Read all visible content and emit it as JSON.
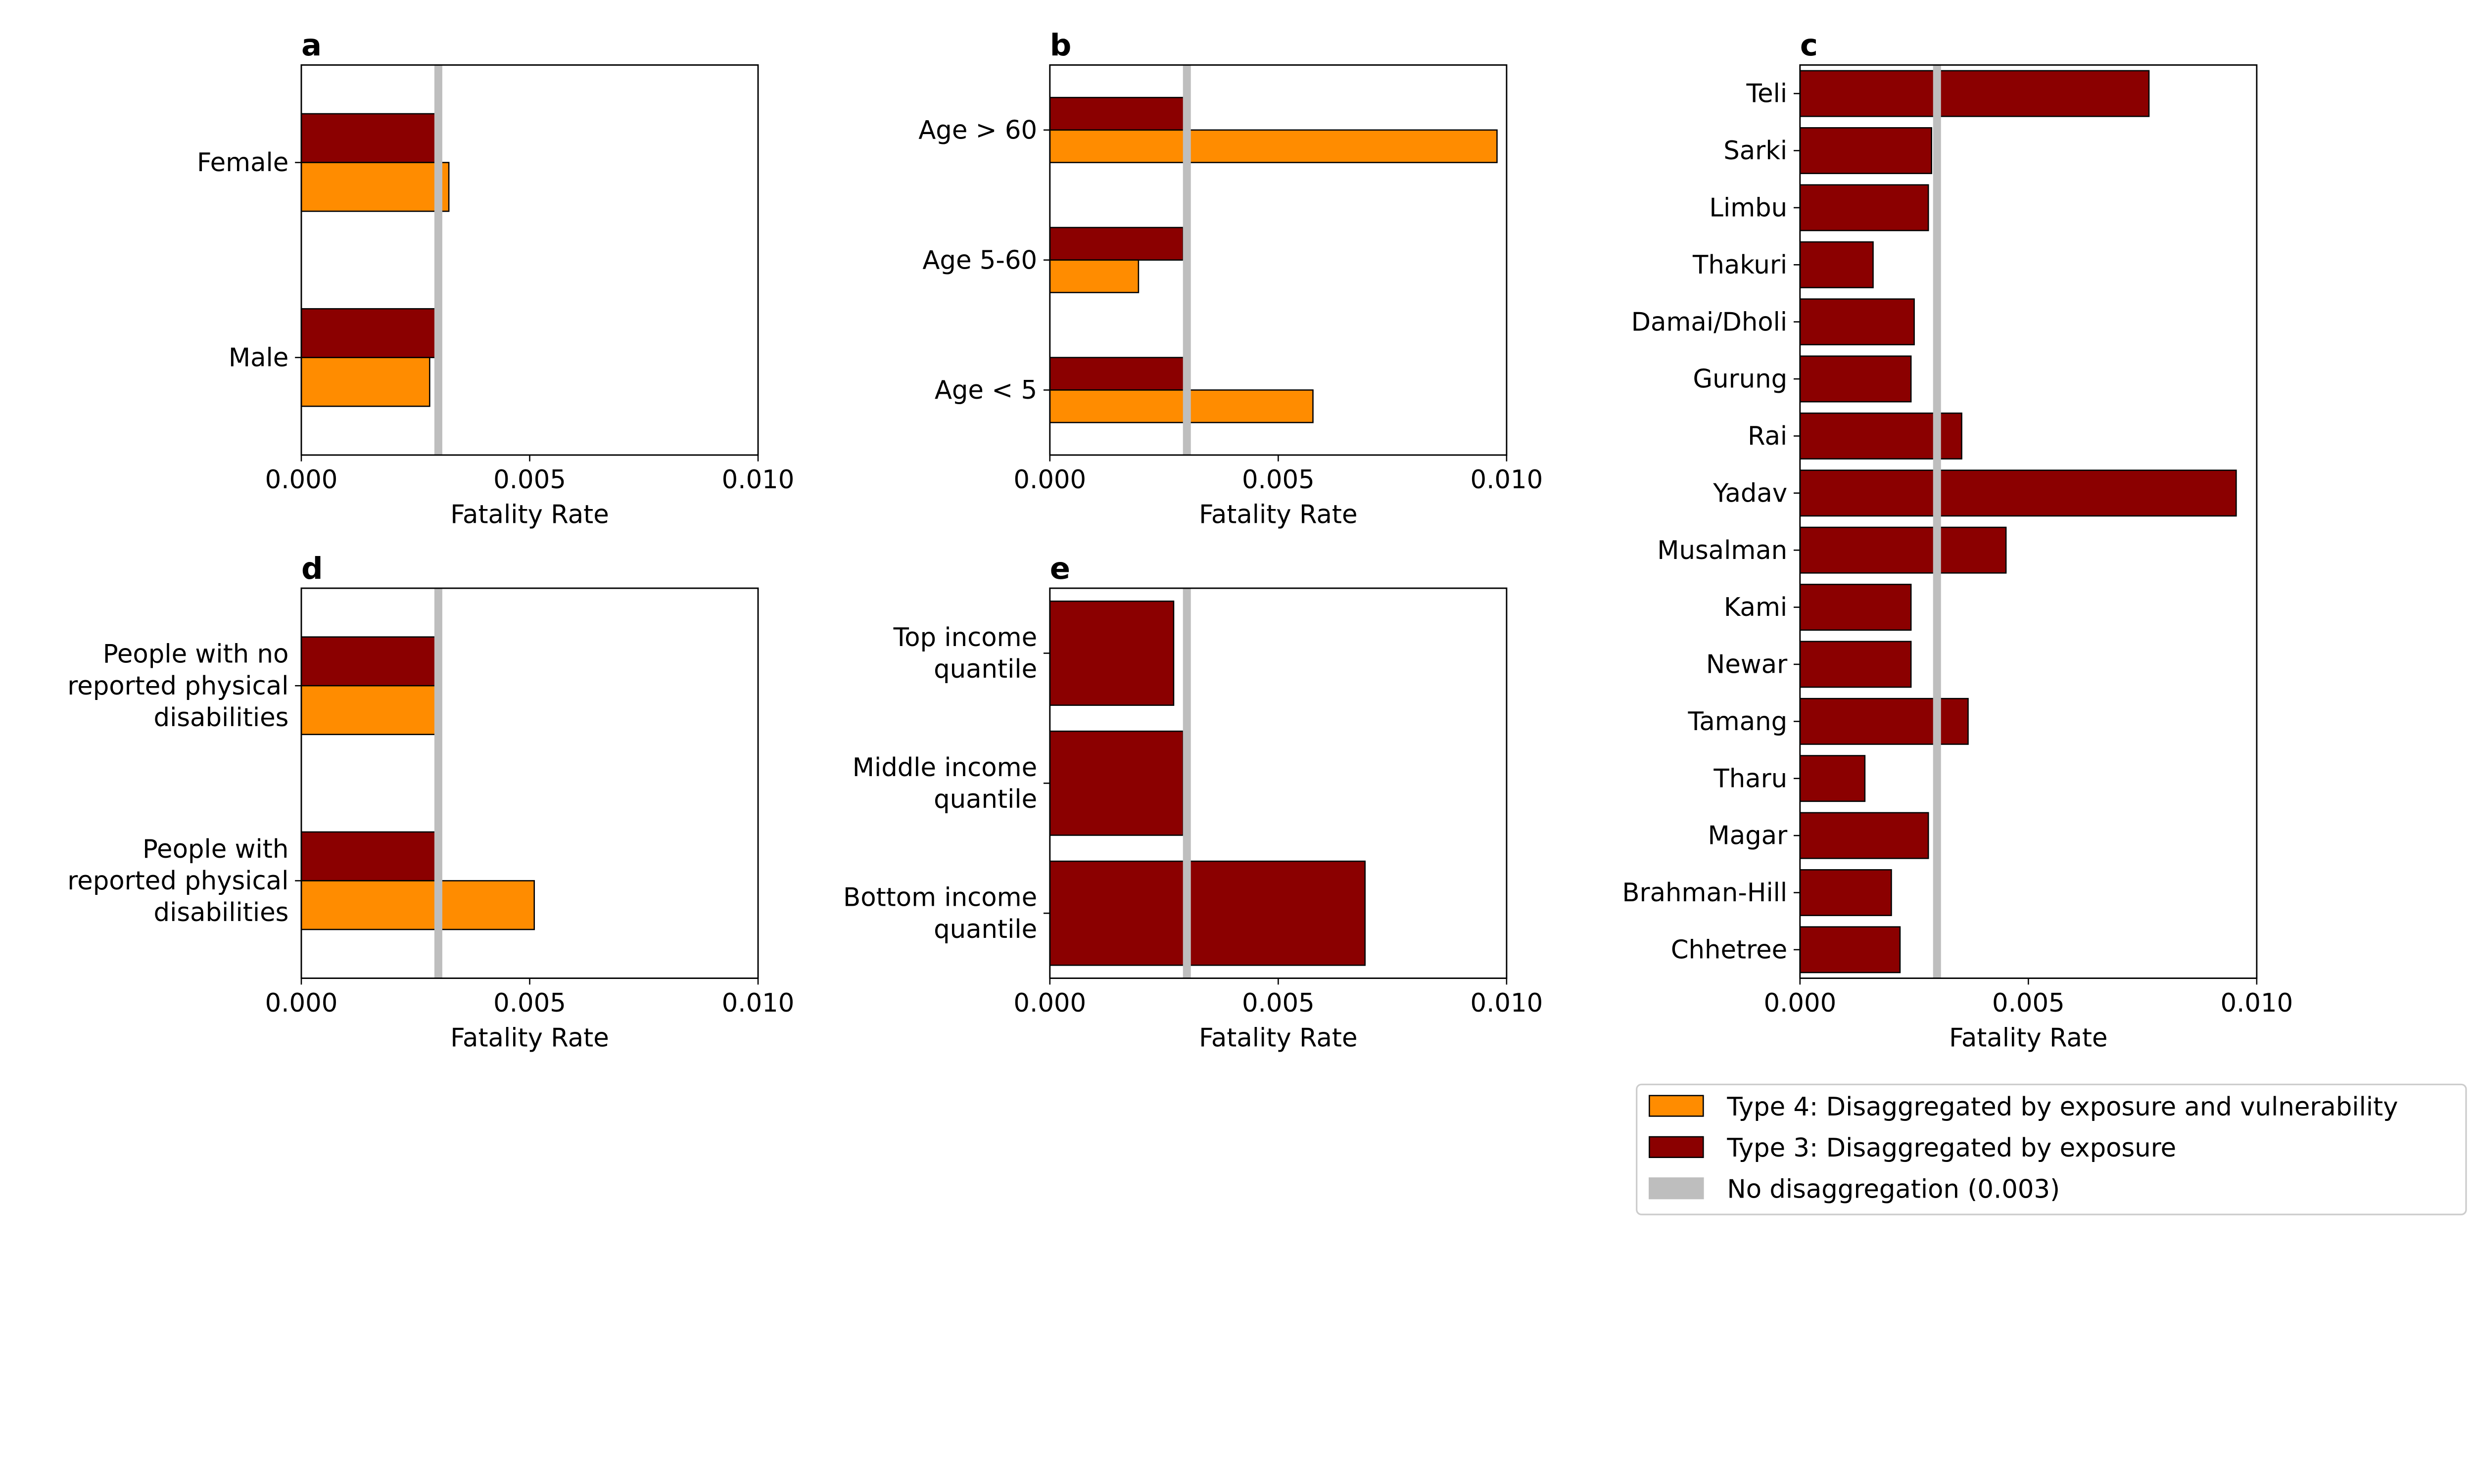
{
  "colors": {
    "type4": "#FF8C00",
    "type3": "#8B0000",
    "baseline": "#BEBEBE"
  },
  "chart_data": [
    {
      "panel": "a",
      "type": "bar",
      "orientation": "horizontal",
      "xlabel": "Fatality Rate",
      "xlim": [
        0,
        0.01
      ],
      "xticks": [
        "0.000",
        "0.005",
        "0.010"
      ],
      "baseline": 0.003,
      "categories": [
        [
          "Female"
        ],
        [
          "Male"
        ]
      ],
      "series": [
        {
          "name": "Type 3",
          "values": [
            0.003,
            0.003
          ]
        },
        {
          "name": "Type 4",
          "values": [
            0.00323,
            0.00281
          ]
        }
      ]
    },
    {
      "panel": "b",
      "type": "bar",
      "orientation": "horizontal",
      "xlabel": "Fatality Rate",
      "xlim": [
        0,
        0.01
      ],
      "xticks": [
        "0.000",
        "0.005",
        "0.010"
      ],
      "baseline": 0.003,
      "categories": [
        [
          "Age > 60"
        ],
        [
          "Age 5-60"
        ],
        [
          "Age < 5"
        ]
      ],
      "series": [
        {
          "name": "Type 3",
          "values": [
            0.00295,
            0.00292,
            0.00306
          ]
        },
        {
          "name": "Type 4",
          "values": [
            0.00979,
            0.00194,
            0.00576
          ]
        }
      ]
    },
    {
      "panel": "c",
      "type": "bar",
      "orientation": "horizontal",
      "xlabel": "Fatality Rate",
      "xlim": [
        0,
        0.01
      ],
      "xticks": [
        "0.000",
        "0.005",
        "0.010"
      ],
      "baseline": 0.003,
      "categories": [
        [
          "Teli"
        ],
        [
          "Sarki"
        ],
        [
          "Limbu"
        ],
        [
          "Thakuri"
        ],
        [
          "Damai/Dholi"
        ],
        [
          "Gurung"
        ],
        [
          "Rai"
        ],
        [
          "Yadav"
        ],
        [
          "Musalman"
        ],
        [
          "Kami"
        ],
        [
          "Newar"
        ],
        [
          "Tamang"
        ],
        [
          "Tharu"
        ],
        [
          "Magar"
        ],
        [
          "Brahman-Hill"
        ],
        [
          "Chhetree"
        ]
      ],
      "series": [
        {
          "name": "Type 3",
          "values": [
            0.00764,
            0.00288,
            0.00281,
            0.0016,
            0.0025,
            0.00243,
            0.00354,
            0.00955,
            0.00451,
            0.00243,
            0.00243,
            0.00368,
            0.00142,
            0.00281,
            0.002,
            0.00219
          ]
        }
      ]
    },
    {
      "panel": "d",
      "type": "bar",
      "orientation": "horizontal",
      "xlabel": "Fatality Rate",
      "xlim": [
        0,
        0.01
      ],
      "xticks": [
        "0.000",
        "0.005",
        "0.010"
      ],
      "baseline": 0.003,
      "categories": [
        [
          "People with no",
          "reported physical",
          "disabilities"
        ],
        [
          "People with",
          "reported physical",
          "disabilities"
        ]
      ],
      "series": [
        {
          "name": "Type 3",
          "values": [
            0.00299,
            0.00295
          ]
        },
        {
          "name": "Type 4",
          "values": [
            0.00299,
            0.0051
          ]
        }
      ]
    },
    {
      "panel": "e",
      "type": "bar",
      "orientation": "horizontal",
      "xlabel": "Fatality Rate",
      "xlim": [
        0,
        0.01
      ],
      "xticks": [
        "0.000",
        "0.005",
        "0.010"
      ],
      "baseline": 0.003,
      "categories": [
        [
          "Top income",
          "quantile"
        ],
        [
          "Middle income",
          "quantile"
        ],
        [
          "Bottom income",
          "quantile"
        ]
      ],
      "series": [
        {
          "name": "Type 3",
          "values": [
            0.00271,
            0.00292,
            0.0069
          ]
        }
      ]
    }
  ],
  "legend": {
    "placement": "bottom-right",
    "items": [
      {
        "label": "Type 4: Disaggregated by exposure and vulnerability",
        "key": "type4"
      },
      {
        "label": "Type 3: Disaggregated by exposure",
        "key": "type3"
      },
      {
        "label": "No disaggregation (0.003)",
        "key": "baseline"
      }
    ]
  }
}
